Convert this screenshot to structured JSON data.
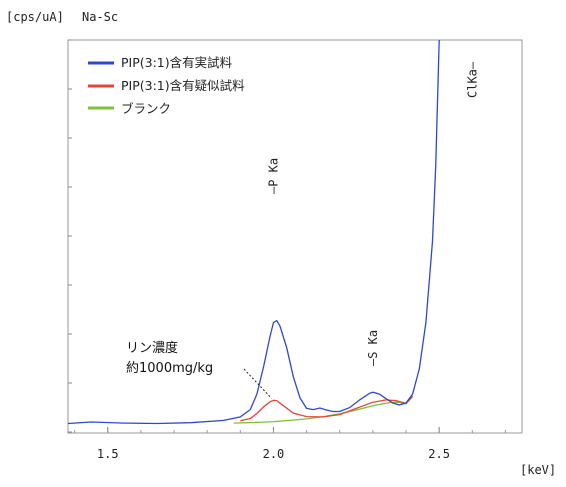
{
  "chart_data": {
    "type": "line",
    "y_unit_label": "[cps/uA]",
    "filter_label": "Na-Sc",
    "x_unit_label": "[keV]",
    "xlim": [
      1.38,
      2.75
    ],
    "ylim": [
      0,
      100
    ],
    "x_ticks": [
      1.5,
      2.0,
      2.5
    ],
    "x_tick_labels": [
      "1.5",
      "2.0",
      "2.5"
    ],
    "legend_position": "top-left",
    "series": [
      {
        "name": "PIP(3:1)含有実試料",
        "color": "#2f49c8",
        "points": [
          [
            1.38,
            0.9
          ],
          [
            1.45,
            1.3
          ],
          [
            1.55,
            1.0
          ],
          [
            1.65,
            0.9
          ],
          [
            1.75,
            1.1
          ],
          [
            1.85,
            1.7
          ],
          [
            1.9,
            2.6
          ],
          [
            1.93,
            4.5
          ],
          [
            1.95,
            8.5
          ],
          [
            1.97,
            15.5
          ],
          [
            1.99,
            23.5
          ],
          [
            2.0,
            27.0
          ],
          [
            2.01,
            27.5
          ],
          [
            2.02,
            26.0
          ],
          [
            2.04,
            20.5
          ],
          [
            2.06,
            13.0
          ],
          [
            2.08,
            7.5
          ],
          [
            2.1,
            4.8
          ],
          [
            2.12,
            4.5
          ],
          [
            2.14,
            4.9
          ],
          [
            2.16,
            4.4
          ],
          [
            2.18,
            4.0
          ],
          [
            2.2,
            4.0
          ],
          [
            2.23,
            5.0
          ],
          [
            2.26,
            7.0
          ],
          [
            2.29,
            8.7
          ],
          [
            2.3,
            9.0
          ],
          [
            2.32,
            8.5
          ],
          [
            2.34,
            7.3
          ],
          [
            2.36,
            6.2
          ],
          [
            2.38,
            5.7
          ],
          [
            2.4,
            6.2
          ],
          [
            2.42,
            8.5
          ],
          [
            2.44,
            15.0
          ],
          [
            2.46,
            27.0
          ],
          [
            2.48,
            48.0
          ],
          [
            2.49,
            68.0
          ],
          [
            2.5,
            100.0
          ]
        ]
      },
      {
        "name": "PIP(3:1)含有疑似試料",
        "color": "#e8443a",
        "points": [
          [
            1.9,
            1.6
          ],
          [
            1.93,
            2.2
          ],
          [
            1.95,
            3.5
          ],
          [
            1.97,
            5.2
          ],
          [
            1.99,
            6.5
          ],
          [
            2.0,
            6.9
          ],
          [
            2.01,
            6.8
          ],
          [
            2.03,
            5.5
          ],
          [
            2.06,
            3.6
          ],
          [
            2.1,
            2.7
          ],
          [
            2.15,
            2.6
          ],
          [
            2.2,
            3.2
          ],
          [
            2.25,
            4.8
          ],
          [
            2.3,
            6.4
          ],
          [
            2.34,
            7.0
          ],
          [
            2.37,
            6.8
          ],
          [
            2.4,
            6.1
          ],
          [
            2.42,
            8.0
          ]
        ]
      },
      {
        "name": "ブランク",
        "color": "#7cc23a",
        "points": [
          [
            1.88,
            1.0
          ],
          [
            1.95,
            1.2
          ],
          [
            2.0,
            1.4
          ],
          [
            2.05,
            1.7
          ],
          [
            2.1,
            2.1
          ],
          [
            2.15,
            2.7
          ],
          [
            2.2,
            3.4
          ],
          [
            2.25,
            4.4
          ],
          [
            2.3,
            5.5
          ],
          [
            2.35,
            6.3
          ],
          [
            2.38,
            6.4
          ],
          [
            2.4,
            6.0
          ],
          [
            2.42,
            7.8
          ]
        ]
      }
    ],
    "peak_labels": [
      {
        "text": "—P Ka",
        "x": 2.0
      },
      {
        "text": "—S Ka",
        "x": 2.3
      },
      {
        "text": "ClKa—",
        "x": 2.6
      }
    ],
    "annotation": {
      "line1": "リン濃度",
      "line2": "約1000mg/kg",
      "target_x": 2.0,
      "target_y": 6.9
    }
  }
}
